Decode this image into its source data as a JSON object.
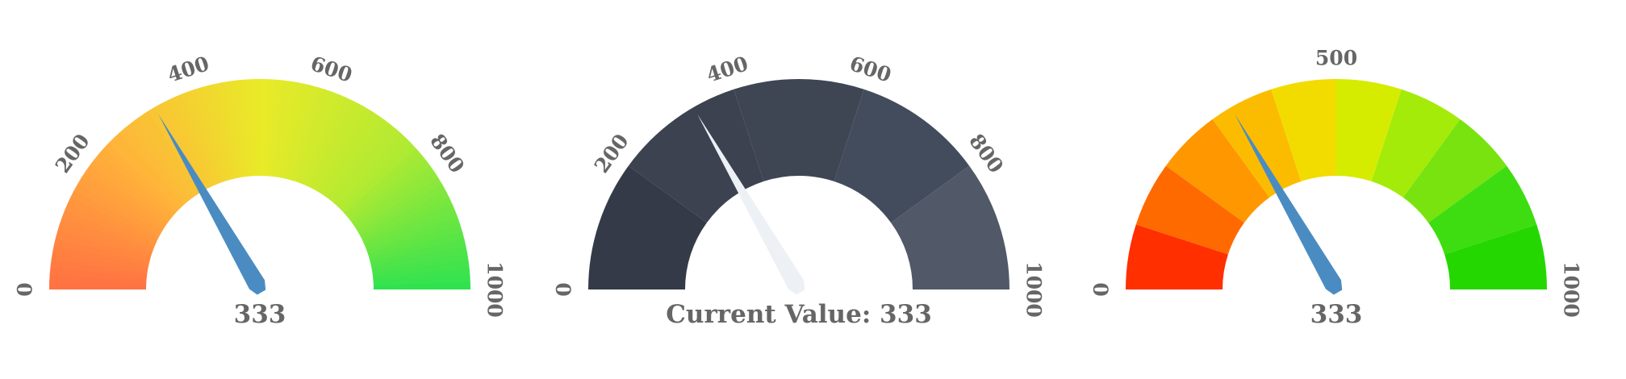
{
  "chart_data": [
    {
      "type": "gauge",
      "min": 0,
      "max": 1000,
      "value": 333,
      "value_label": "333",
      "tick_labels": [
        "0",
        "200",
        "400",
        "600",
        "800",
        "1000"
      ],
      "ticks": [
        0,
        200,
        400,
        600,
        800,
        1000
      ],
      "arc_style": "smooth-gradient",
      "colors": [
        "#ff7043",
        "#ffb43a",
        "#eaea28",
        "#b2ea32",
        "#2ee250"
      ],
      "needle_color": "#4a8cc2"
    },
    {
      "type": "gauge",
      "min": 0,
      "max": 1000,
      "value": 333,
      "value_label": "Current Value: 333",
      "tick_labels": [
        "0",
        "200",
        "400",
        "600",
        "800",
        "1000"
      ],
      "ticks": [
        0,
        200,
        400,
        600,
        800,
        1000
      ],
      "arc_style": "segments",
      "segments": 5,
      "colors": [
        "#343a47",
        "#3c424f",
        "#3e4553",
        "#434c5d",
        "#515867"
      ],
      "needle_color": "#edf0f5"
    },
    {
      "type": "gauge",
      "min": 0,
      "max": 1000,
      "value": 333,
      "value_label": "333",
      "tick_labels": [
        "0",
        "500",
        "1000"
      ],
      "ticks": [
        0,
        500,
        1000
      ],
      "arc_style": "segments",
      "segments": 10,
      "colors": [
        "#ff2f00",
        "#ff6a00",
        "#ff9700",
        "#fbbc00",
        "#f2dc00",
        "#d5ec00",
        "#a5eb0a",
        "#78e30e",
        "#3edd12",
        "#25d700"
      ],
      "needle_color": "#4a8cc2"
    }
  ]
}
